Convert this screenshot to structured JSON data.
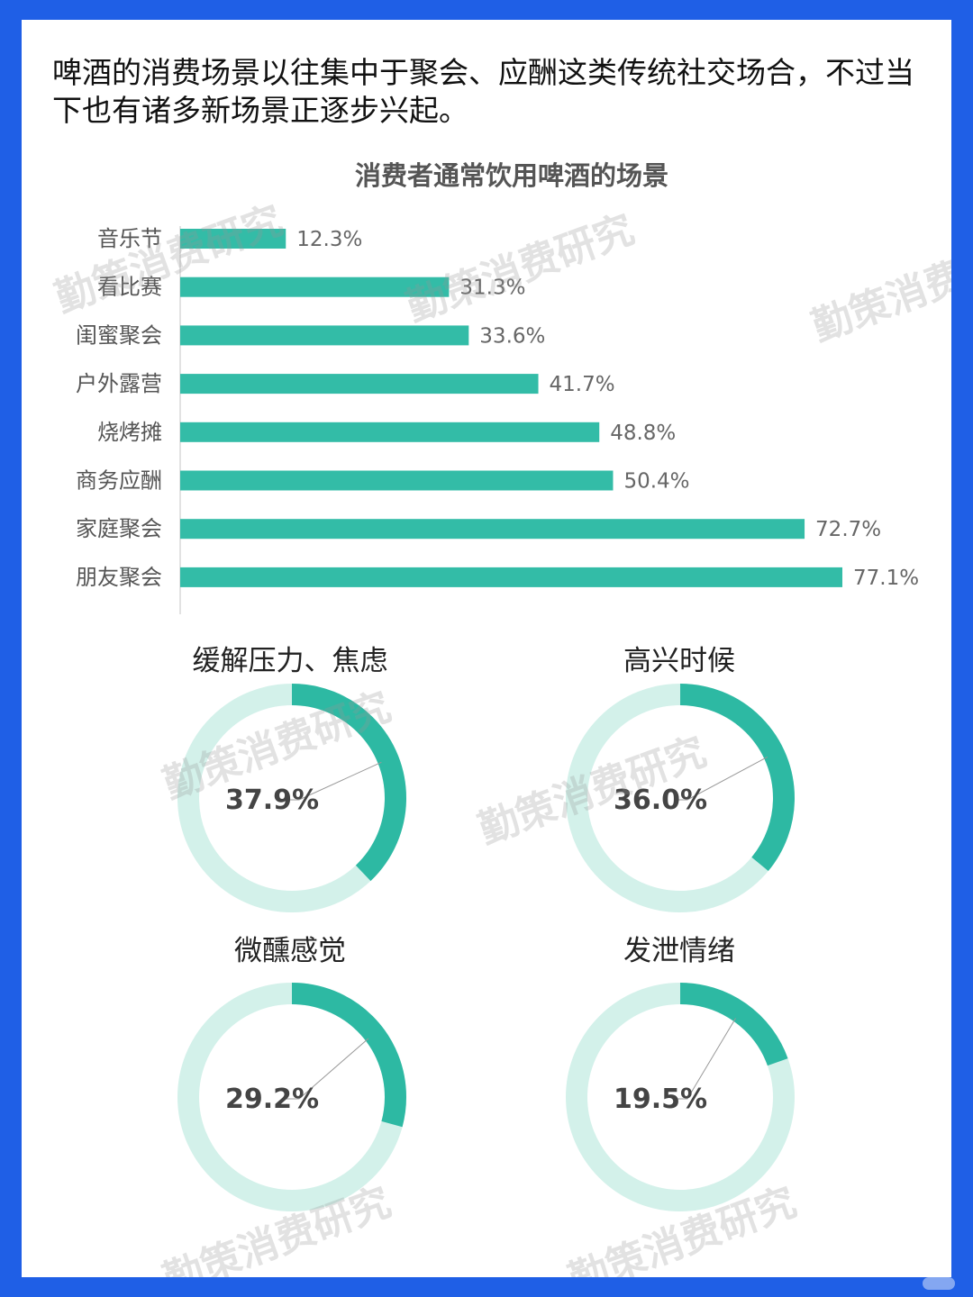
{
  "intro_text": "啤酒的消费场景以往集中于聚会、应酬这类传统社交场合，不过当下也有诸多新场景正逐步兴起。",
  "watermark_text": "勤策消费研究",
  "colors": {
    "bar": "#33bca7",
    "donut_fill": "#2db9a3",
    "donut_track": "#d3f1ea",
    "frame": "#1f5fe6"
  },
  "chart_data": [
    {
      "type": "bar",
      "orientation": "horizontal",
      "title": "消费者通常饮用啤酒的场景",
      "categories": [
        "音乐节",
        "看比赛",
        "闺蜜聚会",
        "户外露营",
        "烧烤摊",
        "商务应酬",
        "家庭聚会",
        "朋友聚会"
      ],
      "values": [
        12.3,
        31.3,
        33.6,
        41.7,
        48.8,
        50.4,
        72.7,
        77.1
      ],
      "value_labels": [
        "12.3%",
        "31.3%",
        "33.6%",
        "41.7%",
        "48.8%",
        "50.4%",
        "72.7%",
        "77.1%"
      ],
      "unit": "%",
      "xlim": [
        0,
        100
      ],
      "grid": false
    },
    {
      "type": "pie",
      "style": "donut",
      "title": "缓解压力、焦虑",
      "value": 37.9,
      "label": "37.9%"
    },
    {
      "type": "pie",
      "style": "donut",
      "title": "高兴时候",
      "value": 36.0,
      "label": "36.0%"
    },
    {
      "type": "pie",
      "style": "donut",
      "title": "微醺感觉",
      "value": 29.2,
      "label": "29.2%"
    },
    {
      "type": "pie",
      "style": "donut",
      "title": "发泄情绪",
      "value": 19.5,
      "label": "19.5%"
    }
  ]
}
